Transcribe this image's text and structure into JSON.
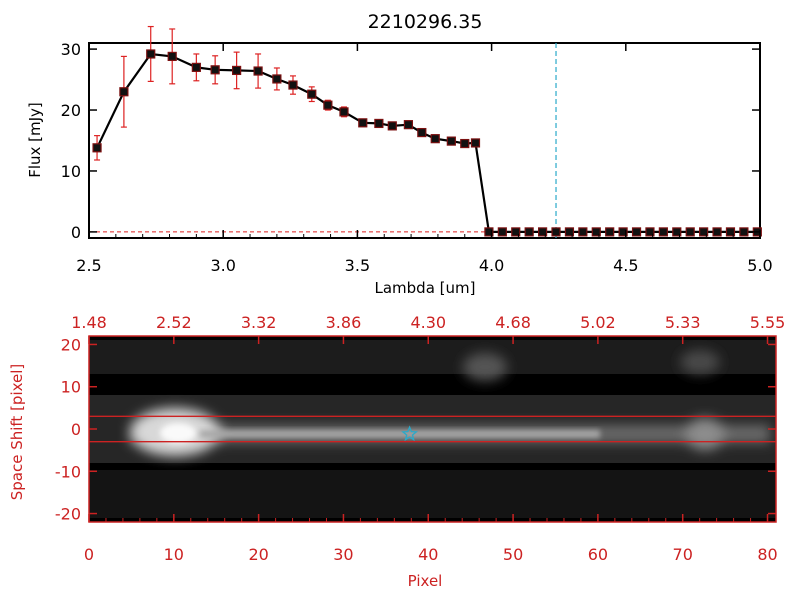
{
  "chart_data": [
    {
      "type": "line",
      "title": "2210296.35",
      "xlabel": "Lambda [um]",
      "ylabel": "Flux [mJy]",
      "xlim": [
        2.5,
        5.0
      ],
      "ylim": [
        -1,
        31
      ],
      "x_ticks": [
        2.5,
        3.0,
        3.5,
        4.0,
        4.5,
        5.0
      ],
      "x_tick_labels": [
        "2.5",
        "3.0",
        "3.5",
        "4.0",
        "4.5",
        "5.0"
      ],
      "y_ticks": [
        0,
        10,
        20,
        30
      ],
      "y_tick_labels": [
        "0",
        "10",
        "20",
        "30"
      ],
      "marker_line": 4.24,
      "series": [
        {
          "x": [
            2.53,
            2.63,
            2.73,
            2.81,
            2.9,
            2.97,
            3.05,
            3.13,
            3.2,
            3.26,
            3.33,
            3.39,
            3.45,
            3.52,
            3.58,
            3.63,
            3.69,
            3.74,
            3.79,
            3.85,
            3.9,
            3.94,
            3.99,
            4.04,
            4.09,
            4.14,
            4.19,
            4.24,
            4.29,
            4.34,
            4.39,
            4.44,
            4.49,
            4.54,
            4.59,
            4.64,
            4.69,
            4.74,
            4.79,
            4.84,
            4.89,
            4.94,
            4.99
          ],
          "y": [
            13.8,
            23.0,
            29.2,
            28.8,
            27.0,
            26.6,
            26.5,
            26.4,
            25.1,
            24.1,
            22.6,
            20.8,
            19.7,
            17.9,
            17.8,
            17.4,
            17.6,
            16.3,
            15.3,
            14.9,
            14.5,
            14.6,
            0,
            0,
            0,
            0,
            0,
            0,
            0,
            0,
            0,
            0,
            0,
            0,
            0,
            0,
            0,
            0,
            0,
            0,
            0,
            0,
            0
          ],
          "yerr": [
            2.0,
            5.8,
            4.5,
            4.5,
            2.2,
            2.3,
            3.0,
            2.8,
            1.8,
            1.5,
            1.2,
            0.8,
            0.8,
            0.6,
            0.6,
            0.6,
            0.6,
            0.6,
            0.6,
            0.6,
            0.6,
            0.6,
            0,
            0,
            0,
            0,
            0,
            0,
            0,
            0,
            0,
            0,
            0,
            0,
            0,
            0,
            0,
            0,
            0,
            0,
            0,
            0,
            0
          ]
        }
      ]
    },
    {
      "type": "heatmap",
      "xlabel": "Pixel",
      "ylabel": "Space Shift [pixel]",
      "xlim": [
        0,
        81
      ],
      "ylim": [
        -22,
        22
      ],
      "x_ticks": [
        0,
        10,
        20,
        30,
        40,
        50,
        60,
        70,
        80
      ],
      "x_tick_labels": [
        "0",
        "10",
        "20",
        "30",
        "40",
        "50",
        "60",
        "70",
        "80"
      ],
      "y_ticks": [
        -20,
        -10,
        0,
        10,
        20
      ],
      "y_tick_labels": [
        "-20",
        "-10",
        "0",
        "10",
        "20"
      ],
      "top_axis_ticks": [
        0,
        10,
        20,
        30,
        40,
        50,
        60,
        70,
        80
      ],
      "top_axis_labels": [
        "1.48",
        "2.52",
        "3.32",
        "3.86",
        "4.30",
        "4.68",
        "5.02",
        "5.33",
        "5.55"
      ],
      "aperture_lines": [
        3,
        -3
      ],
      "star_marker": [
        37.8,
        -1.2
      ]
    }
  ],
  "colors": {
    "axis_red": "#cc2222",
    "error_bar": "#dd2222",
    "marker_line": "#2aa9c9",
    "data_line": "#000000"
  }
}
